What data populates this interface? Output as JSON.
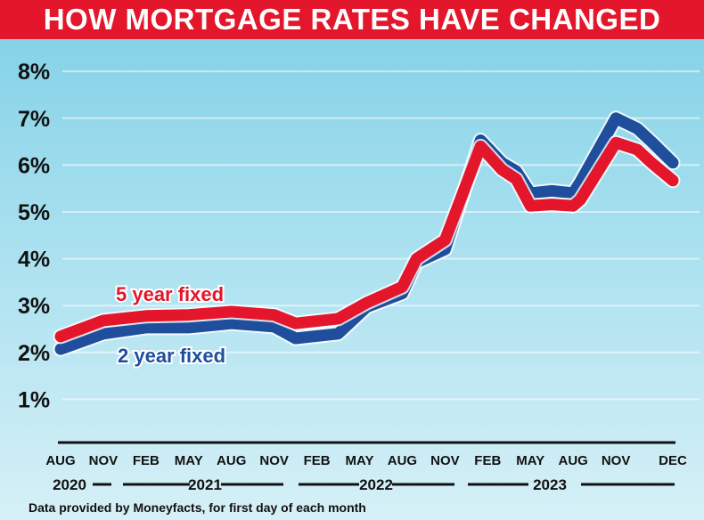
{
  "chart_data": {
    "type": "line",
    "title": "HOW MORTGAGE RATES HAVE CHANGED",
    "xlabel": "",
    "ylabel": "",
    "ylim": [
      0,
      8
    ],
    "yticks": [
      "1%",
      "2%",
      "3%",
      "4%",
      "5%",
      "6%",
      "7%",
      "8%"
    ],
    "ytick_values": [
      1,
      2,
      3,
      4,
      5,
      6,
      7,
      8
    ],
    "x_unit": "months since Aug 2020 (approx.)",
    "xlim": [
      0,
      43
    ],
    "xtick_labels": [
      "AUG",
      "NOV",
      "FEB",
      "MAY",
      "AUG",
      "NOV",
      "FEB",
      "MAY",
      "AUG",
      "NOV",
      "FEB",
      "MAY",
      "AUG",
      "NOV",
      "DEC"
    ],
    "xtick_values": [
      0,
      3,
      6,
      9,
      12,
      15,
      18,
      21,
      24,
      27,
      30,
      33,
      36,
      39,
      43
    ],
    "years": [
      {
        "label": "2020",
        "at": 0
      },
      {
        "label": "2021",
        "at": 9
      },
      {
        "label": "2022",
        "at": 21
      },
      {
        "label": "2023",
        "at": 33
      }
    ],
    "grid": true,
    "x": [
      0,
      3,
      6,
      9,
      12,
      15,
      16.5,
      19.5,
      21.5,
      24,
      25,
      27,
      29.5,
      31,
      32,
      33,
      34.5,
      36,
      36.5,
      39,
      40.5,
      41.5,
      43
    ],
    "series": [
      {
        "name": "2 year fixed",
        "color": "#1f4e9c",
        "values": [
          2.07,
          2.4,
          2.53,
          2.53,
          2.62,
          2.55,
          2.3,
          2.4,
          2.97,
          3.26,
          3.92,
          4.2,
          6.53,
          6.05,
          5.87,
          5.4,
          5.45,
          5.4,
          5.64,
          7.0,
          6.78,
          6.5,
          6.05
        ]
      },
      {
        "name": "5 year fixed",
        "color": "#e3162b",
        "values": [
          2.34,
          2.68,
          2.78,
          2.8,
          2.87,
          2.8,
          2.62,
          2.72,
          3.06,
          3.4,
          4.0,
          4.4,
          6.4,
          5.9,
          5.7,
          5.13,
          5.16,
          5.13,
          5.26,
          6.48,
          6.33,
          6.05,
          5.67
        ]
      }
    ],
    "source": "Data provided by Moneyfacts, for first day of each month"
  }
}
